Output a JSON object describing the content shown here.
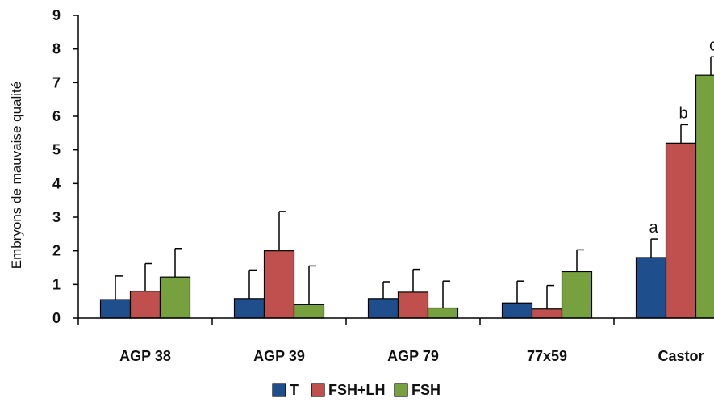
{
  "chart_data": {
    "type": "bar",
    "title": "",
    "xlabel": "",
    "ylabel": "Embryons de mauvaise qualité",
    "ylim": [
      0,
      9
    ],
    "yticks": [
      "0",
      "1",
      "2",
      "3",
      "4",
      "5",
      "6",
      "7",
      "8",
      "9"
    ],
    "grid": false,
    "legend_position": "bottom",
    "categories": [
      "AGP 38",
      "AGP 39",
      "AGP 79",
      "77x59",
      "Castor"
    ],
    "series": [
      {
        "name": "T",
        "color": "#1F4E8C",
        "values": [
          0.55,
          0.58,
          0.58,
          0.45,
          1.8
        ],
        "errors": [
          0.7,
          0.85,
          0.5,
          0.65,
          0.55
        ]
      },
      {
        "name": "FSH+LH",
        "color": "#C0504D",
        "values": [
          0.8,
          2.0,
          0.77,
          0.27,
          5.2
        ],
        "errors": [
          0.82,
          1.17,
          0.68,
          0.7,
          0.55
        ]
      },
      {
        "name": "FSH",
        "color": "#77A13F",
        "values": [
          1.22,
          0.4,
          0.3,
          1.38,
          7.22
        ],
        "errors": [
          0.85,
          1.15,
          0.8,
          0.65,
          0.55
        ]
      }
    ],
    "annotations": [
      {
        "category": "Castor",
        "series": "T",
        "text": "a"
      },
      {
        "category": "Castor",
        "series": "FSH+LH",
        "text": "b"
      },
      {
        "category": "Castor",
        "series": "FSH",
        "text": "c"
      }
    ]
  }
}
